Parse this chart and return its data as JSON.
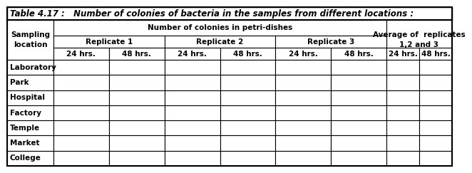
{
  "title": "Table 4.17 :   Number of colonies of bacteria in the samples from different locations :",
  "header_row1_mid": "Number of colonies in petri-dishes",
  "header_row1_right": "Average of  replicates\n1,2 and 3",
  "header_row2": [
    "Replicate 1",
    "Replicate 2",
    "Replicate 3"
  ],
  "header_row3": [
    "24 hrs.",
    "48 hrs.",
    "24 hrs.",
    "48 hrs.",
    "24 hrs.",
    "48 hrs.",
    "24 hrs.",
    "48 hrs."
  ],
  "row_labels": [
    "Laboratory",
    "Park",
    "Hospital",
    "Factory",
    "Temple",
    "Market",
    "College"
  ],
  "bg_color": "#ffffff",
  "font_size_title": 8.5,
  "font_size_header": 7.5,
  "font_size_body": 7.5
}
